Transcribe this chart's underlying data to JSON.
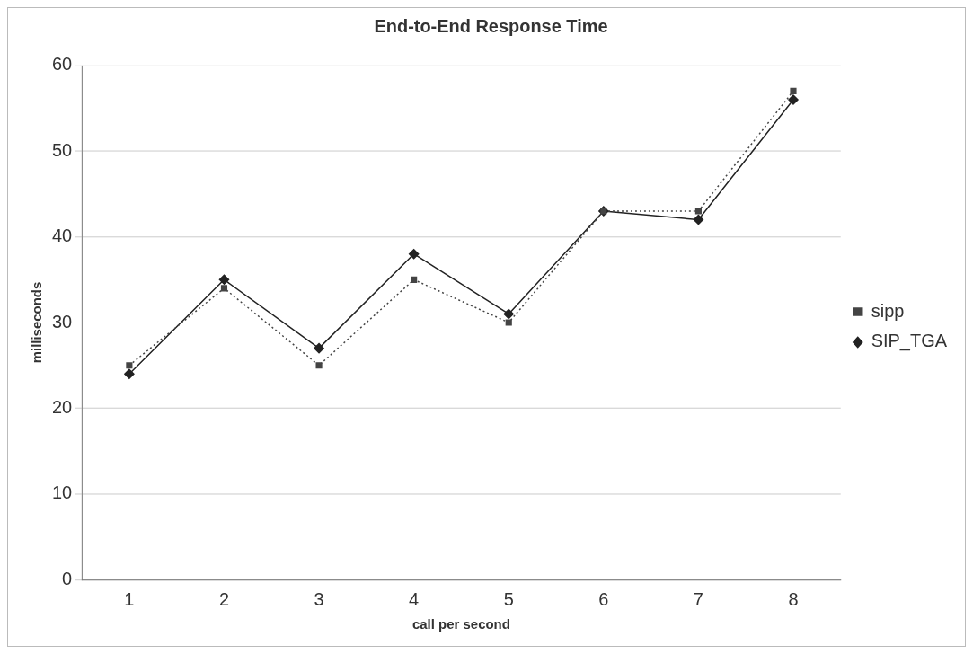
{
  "chart_data": {
    "type": "line",
    "title": "End-to-End Response Time",
    "xlabel": "call per second",
    "ylabel": "milliseconds",
    "categories": [
      "1",
      "2",
      "3",
      "4",
      "5",
      "6",
      "7",
      "8"
    ],
    "series": [
      {
        "name": "SIP_TGA",
        "color": "#222222",
        "values": [
          24,
          35,
          27,
          38,
          31,
          43,
          42,
          56
        ],
        "marker": "diamond",
        "line_style": "solid"
      },
      {
        "name": "sipp",
        "color": "#444444",
        "values": [
          25,
          34,
          25,
          35,
          30,
          43,
          43,
          57
        ],
        "marker": "square",
        "line_style": "dotted"
      }
    ],
    "ylim": [
      0,
      60
    ],
    "yticks": [
      0,
      10,
      20,
      30,
      40,
      50,
      60
    ],
    "grid": "y",
    "legend": "right"
  }
}
